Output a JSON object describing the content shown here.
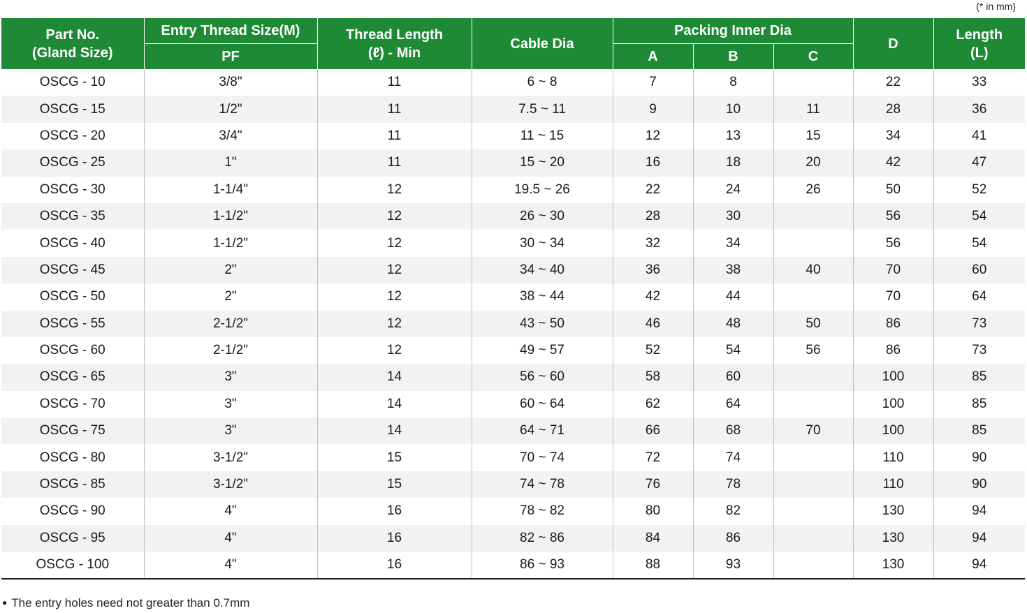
{
  "unit_note": "(* in mm)",
  "headers": {
    "part_no_line1": "Part No.",
    "part_no_line2": "(Gland Size)",
    "entry_thread": "Entry Thread Size(M)",
    "pf": "PF",
    "thread_length_line1": "Thread Length",
    "thread_length_line2": "(ℓ) - Min",
    "cable_dia": "Cable Dia",
    "packing_inner_dia": "Packing Inner Dia",
    "a": "A",
    "b": "B",
    "c": "C",
    "d": "D",
    "length_line1": "Length",
    "length_line2": "(L)"
  },
  "rows": [
    {
      "part": "OSCG - 10",
      "pf": "3/8\"",
      "thread": "11",
      "cable": "6 ~ 8",
      "a": "7",
      "b": "8",
      "c": "",
      "d": "22",
      "len": "33"
    },
    {
      "part": "OSCG - 15",
      "pf": "1/2\"",
      "thread": "11",
      "cable": "7.5 ~ 11",
      "a": "9",
      "b": "10",
      "c": "11",
      "d": "28",
      "len": "36"
    },
    {
      "part": "OSCG - 20",
      "pf": "3/4\"",
      "thread": "11",
      "cable": "11 ~ 15",
      "a": "12",
      "b": "13",
      "c": "15",
      "d": "34",
      "len": "41"
    },
    {
      "part": "OSCG - 25",
      "pf": "1\"",
      "thread": "11",
      "cable": "15 ~ 20",
      "a": "16",
      "b": "18",
      "c": "20",
      "d": "42",
      "len": "47"
    },
    {
      "part": "OSCG - 30",
      "pf": "1-1/4\"",
      "thread": "12",
      "cable": "19.5 ~ 26",
      "a": "22",
      "b": "24",
      "c": "26",
      "d": "50",
      "len": "52"
    },
    {
      "part": "OSCG - 35",
      "pf": "1-1/2\"",
      "thread": "12",
      "cable": "26 ~ 30",
      "a": "28",
      "b": "30",
      "c": "",
      "d": "56",
      "len": "54"
    },
    {
      "part": "OSCG - 40",
      "pf": "1-1/2\"",
      "thread": "12",
      "cable": "30 ~ 34",
      "a": "32",
      "b": "34",
      "c": "",
      "d": "56",
      "len": "54"
    },
    {
      "part": "OSCG - 45",
      "pf": "2\"",
      "thread": "12",
      "cable": "34 ~ 40",
      "a": "36",
      "b": "38",
      "c": "40",
      "d": "70",
      "len": "60"
    },
    {
      "part": "OSCG - 50",
      "pf": "2\"",
      "thread": "12",
      "cable": "38 ~ 44",
      "a": "42",
      "b": "44",
      "c": "",
      "d": "70",
      "len": "64"
    },
    {
      "part": "OSCG - 55",
      "pf": "2-1/2\"",
      "thread": "12",
      "cable": "43 ~ 50",
      "a": "46",
      "b": "48",
      "c": "50",
      "d": "86",
      "len": "73"
    },
    {
      "part": "OSCG - 60",
      "pf": "2-1/2\"",
      "thread": "12",
      "cable": "49 ~ 57",
      "a": "52",
      "b": "54",
      "c": "56",
      "d": "86",
      "len": "73"
    },
    {
      "part": "OSCG - 65",
      "pf": "3\"",
      "thread": "14",
      "cable": "56 ~ 60",
      "a": "58",
      "b": "60",
      "c": "",
      "d": "100",
      "len": "85"
    },
    {
      "part": "OSCG - 70",
      "pf": "3\"",
      "thread": "14",
      "cable": "60 ~ 64",
      "a": "62",
      "b": "64",
      "c": "",
      "d": "100",
      "len": "85"
    },
    {
      "part": "OSCG - 75",
      "pf": "3\"",
      "thread": "14",
      "cable": "64 ~ 71",
      "a": "66",
      "b": "68",
      "c": "70",
      "d": "100",
      "len": "85"
    },
    {
      "part": "OSCG - 80",
      "pf": "3-1/2\"",
      "thread": "15",
      "cable": "70 ~ 74",
      "a": "72",
      "b": "74",
      "c": "",
      "d": "110",
      "len": "90"
    },
    {
      "part": "OSCG - 85",
      "pf": "3-1/2\"",
      "thread": "15",
      "cable": "74 ~ 78",
      "a": "76",
      "b": "78",
      "c": "",
      "d": "110",
      "len": "90"
    },
    {
      "part": "OSCG - 90",
      "pf": "4\"",
      "thread": "16",
      "cable": "78 ~ 82",
      "a": "80",
      "b": "82",
      "c": "",
      "d": "130",
      "len": "94"
    },
    {
      "part": "OSCG - 95",
      "pf": "4\"",
      "thread": "16",
      "cable": "82 ~ 86",
      "a": "84",
      "b": "86",
      "c": "",
      "d": "130",
      "len": "94"
    },
    {
      "part": "OSCG - 100",
      "pf": "4\"",
      "thread": "16",
      "cable": "86 ~ 93",
      "a": "88",
      "b": "93",
      "c": "",
      "d": "130",
      "len": "94"
    }
  ],
  "colors": {
    "header_green": "#1e8a36",
    "stripe_gray": "#f2f2f2"
  },
  "footnote": "The entry holes need not greater than 0.7mm"
}
